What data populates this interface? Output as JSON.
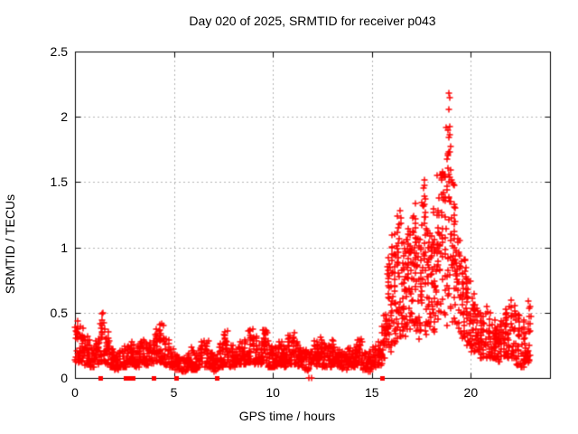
{
  "figure": {
    "background": "#ffffff",
    "border_color": "#000000",
    "grid_color": "#b3b3b3"
  },
  "chart_data": {
    "type": "scatter",
    "title": "Day 020 of 2025, SRMTID for receiver p043",
    "xlabel": "GPS time / hours",
    "ylabel": "SRMTID / TECUs",
    "xlim": [
      0,
      24
    ],
    "ylim": [
      0,
      2.5
    ],
    "xtick_labels": [
      "0",
      "5",
      "10",
      "15",
      "20"
    ],
    "xtick_values": [
      0,
      5,
      10,
      15,
      20
    ],
    "ytick_labels": [
      "0",
      "0.5",
      "1",
      "1.5",
      "2",
      "2.5"
    ],
    "ytick_values": [
      0,
      0.5,
      1,
      1.5,
      2,
      2.5
    ],
    "grid": true,
    "legend": "none",
    "marker": "plus",
    "marker_color": "#ff0000",
    "series_name": "SRMTID",
    "bin_width_hours": 0.25,
    "envelope_bins": [
      [
        0.0,
        0.12,
        0.46,
        24
      ],
      [
        0.25,
        0.12,
        0.4,
        24
      ],
      [
        0.5,
        0.1,
        0.32,
        22
      ],
      [
        0.75,
        0.08,
        0.25,
        22
      ],
      [
        1.0,
        0.1,
        0.33,
        22
      ],
      [
        1.25,
        0.12,
        0.5,
        24
      ],
      [
        1.5,
        0.1,
        0.35,
        22
      ],
      [
        1.75,
        0.08,
        0.22,
        20
      ],
      [
        2.0,
        0.06,
        0.2,
        20
      ],
      [
        2.25,
        0.08,
        0.22,
        20
      ],
      [
        2.5,
        0.08,
        0.25,
        20
      ],
      [
        2.75,
        0.1,
        0.28,
        20
      ],
      [
        3.0,
        0.08,
        0.25,
        20
      ],
      [
        3.25,
        0.12,
        0.3,
        22
      ],
      [
        3.5,
        0.1,
        0.28,
        20
      ],
      [
        3.75,
        0.1,
        0.3,
        20
      ],
      [
        4.0,
        0.12,
        0.38,
        22
      ],
      [
        4.25,
        0.12,
        0.42,
        24
      ],
      [
        4.5,
        0.1,
        0.3,
        20
      ],
      [
        4.75,
        0.08,
        0.22,
        20
      ],
      [
        5.0,
        0.06,
        0.18,
        18
      ],
      [
        5.25,
        0.05,
        0.16,
        18
      ],
      [
        5.5,
        0.05,
        0.18,
        18
      ],
      [
        5.75,
        0.06,
        0.24,
        20
      ],
      [
        6.0,
        0.06,
        0.2,
        18
      ],
      [
        6.25,
        0.08,
        0.28,
        20
      ],
      [
        6.5,
        0.08,
        0.3,
        20
      ],
      [
        6.75,
        0.06,
        0.2,
        18
      ],
      [
        7.0,
        0.05,
        0.18,
        18
      ],
      [
        7.25,
        0.08,
        0.28,
        20
      ],
      [
        7.5,
        0.1,
        0.36,
        22
      ],
      [
        7.75,
        0.08,
        0.25,
        20
      ],
      [
        8.0,
        0.08,
        0.22,
        20
      ],
      [
        8.25,
        0.1,
        0.28,
        20
      ],
      [
        8.5,
        0.1,
        0.3,
        20
      ],
      [
        8.75,
        0.12,
        0.42,
        24
      ],
      [
        9.0,
        0.1,
        0.32,
        20
      ],
      [
        9.25,
        0.1,
        0.3,
        20
      ],
      [
        9.5,
        0.12,
        0.38,
        22
      ],
      [
        9.75,
        0.08,
        0.25,
        20
      ],
      [
        10.0,
        0.08,
        0.24,
        20
      ],
      [
        10.25,
        0.1,
        0.3,
        20
      ],
      [
        10.5,
        0.08,
        0.26,
        20
      ],
      [
        10.75,
        0.1,
        0.34,
        22
      ],
      [
        11.0,
        0.1,
        0.35,
        22
      ],
      [
        11.25,
        0.08,
        0.26,
        20
      ],
      [
        11.5,
        0.06,
        0.22,
        18
      ],
      [
        11.75,
        0.05,
        0.2,
        18
      ],
      [
        12.0,
        0.08,
        0.3,
        20
      ],
      [
        12.25,
        0.1,
        0.36,
        22
      ],
      [
        12.5,
        0.08,
        0.28,
        20
      ],
      [
        12.75,
        0.08,
        0.26,
        20
      ],
      [
        13.0,
        0.1,
        0.32,
        20
      ],
      [
        13.25,
        0.08,
        0.26,
        20
      ],
      [
        13.5,
        0.06,
        0.22,
        18
      ],
      [
        13.75,
        0.08,
        0.24,
        20
      ],
      [
        14.0,
        0.08,
        0.26,
        20
      ],
      [
        14.25,
        0.1,
        0.3,
        20
      ],
      [
        14.5,
        0.06,
        0.22,
        18
      ],
      [
        14.75,
        0.05,
        0.2,
        18
      ],
      [
        15.0,
        0.08,
        0.25,
        20
      ],
      [
        15.25,
        0.1,
        0.3,
        20
      ],
      [
        15.5,
        0.15,
        0.55,
        22
      ],
      [
        15.75,
        0.2,
        1.0,
        24
      ],
      [
        16.0,
        0.25,
        1.1,
        26
      ],
      [
        16.25,
        0.3,
        1.3,
        26
      ],
      [
        16.5,
        0.3,
        1.05,
        26
      ],
      [
        16.75,
        0.35,
        1.2,
        26
      ],
      [
        17.0,
        0.35,
        1.35,
        26
      ],
      [
        17.25,
        0.3,
        1.1,
        26
      ],
      [
        17.5,
        0.35,
        1.55,
        26
      ],
      [
        17.75,
        0.3,
        1.2,
        26
      ],
      [
        18.0,
        0.35,
        1.3,
        26
      ],
      [
        18.25,
        0.4,
        1.6,
        26
      ],
      [
        18.5,
        0.4,
        1.65,
        26
      ],
      [
        18.75,
        0.35,
        1.95,
        26
      ],
      [
        19.0,
        0.4,
        1.55,
        24
      ],
      [
        19.25,
        0.35,
        1.1,
        24
      ],
      [
        19.5,
        0.3,
        0.95,
        24
      ],
      [
        19.75,
        0.25,
        0.8,
        24
      ],
      [
        20.0,
        0.2,
        0.65,
        22
      ],
      [
        20.25,
        0.2,
        0.55,
        22
      ],
      [
        20.5,
        0.15,
        0.5,
        22
      ],
      [
        20.75,
        0.15,
        0.55,
        22
      ],
      [
        21.0,
        0.15,
        0.45,
        22
      ],
      [
        21.25,
        0.12,
        0.4,
        22
      ],
      [
        21.5,
        0.15,
        0.5,
        22
      ],
      [
        21.75,
        0.15,
        0.55,
        22
      ],
      [
        22.0,
        0.15,
        0.65,
        22
      ],
      [
        22.25,
        0.1,
        0.5,
        22
      ],
      [
        22.5,
        0.08,
        0.45,
        22
      ],
      [
        22.75,
        0.12,
        0.6,
        20
      ]
    ],
    "outlier_points": [
      [
        18.88,
        2.18
      ],
      [
        18.93,
        2.15
      ],
      [
        18.9,
        2.06
      ],
      [
        18.86,
        1.9
      ],
      [
        18.91,
        1.84
      ],
      [
        18.96,
        1.77
      ],
      [
        18.84,
        1.72
      ],
      [
        23.0,
        0.55
      ],
      [
        23.02,
        0.47
      ],
      [
        22.99,
        0.36
      ]
    ],
    "zero_square_points_x": [
      1.28,
      2.56,
      2.74,
      2.9,
      3.96,
      5.1,
      7.18,
      15.52
    ],
    "zero_plus_points_x": [
      11.82,
      11.94
    ]
  }
}
